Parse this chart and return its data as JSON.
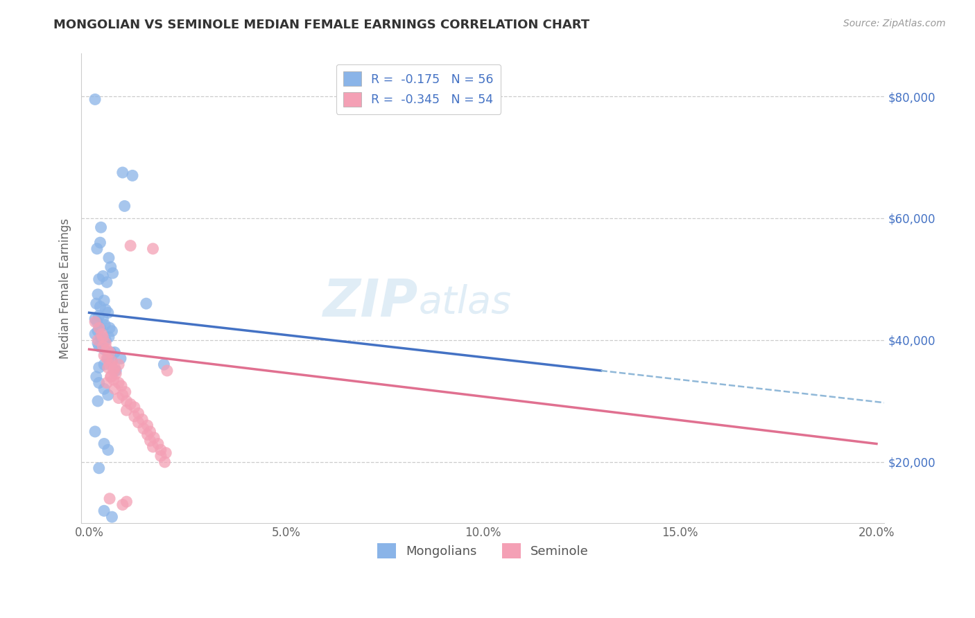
{
  "title": "MONGOLIAN VS SEMINOLE MEDIAN FEMALE EARNINGS CORRELATION CHART",
  "source": "Source: ZipAtlas.com",
  "ylabel_label": "Median Female Earnings",
  "x_min": 0.0,
  "x_max": 0.2,
  "y_min": 10000,
  "y_max": 87000,
  "y_ticks": [
    20000,
    40000,
    60000,
    80000
  ],
  "y_tick_labels": [
    "$20,000",
    "$40,000",
    "$60,000",
    "$80,000"
  ],
  "x_ticks": [
    0.0,
    0.05,
    0.1,
    0.15,
    0.2
  ],
  "x_tick_labels": [
    "0.0%",
    "5.0%",
    "10.0%",
    "15.0%",
    "20.0%"
  ],
  "legend_r1": "R =  -0.175   N = 56",
  "legend_r2": "R =  -0.345   N = 54",
  "blue_color": "#8ab4e8",
  "pink_color": "#f4a0b5",
  "blue_line_color": "#4472c4",
  "pink_line_color": "#e07090",
  "dashed_line_color": "#90b8d8",
  "watermark_zip": "ZIP",
  "watermark_atlas": "atlas",
  "mongolian_points": [
    [
      0.0015,
      79500
    ],
    [
      0.0085,
      67500
    ],
    [
      0.011,
      67000
    ],
    [
      0.009,
      62000
    ],
    [
      0.003,
      58500
    ],
    [
      0.0028,
      56000
    ],
    [
      0.002,
      55000
    ],
    [
      0.005,
      53500
    ],
    [
      0.0055,
      52000
    ],
    [
      0.006,
      51000
    ],
    [
      0.0025,
      50000
    ],
    [
      0.0035,
      50500
    ],
    [
      0.0045,
      49500
    ],
    [
      0.0022,
      47500
    ],
    [
      0.0038,
      46500
    ],
    [
      0.0018,
      46000
    ],
    [
      0.0028,
      45500
    ],
    [
      0.0042,
      45000
    ],
    [
      0.0048,
      44500
    ],
    [
      0.0025,
      44000
    ],
    [
      0.0035,
      43500
    ],
    [
      0.002,
      43000
    ],
    [
      0.0015,
      43500
    ],
    [
      0.004,
      42500
    ],
    [
      0.0052,
      42000
    ],
    [
      0.0028,
      42000
    ],
    [
      0.0058,
      41500
    ],
    [
      0.0022,
      41500
    ],
    [
      0.0015,
      41000
    ],
    [
      0.003,
      40500
    ],
    [
      0.0042,
      40000
    ],
    [
      0.005,
      40500
    ],
    [
      0.0022,
      39500
    ],
    [
      0.0025,
      39000
    ],
    [
      0.0038,
      38500
    ],
    [
      0.0055,
      38000
    ],
    [
      0.0065,
      38000
    ],
    [
      0.008,
      37000
    ],
    [
      0.0048,
      37000
    ],
    [
      0.0058,
      36500
    ],
    [
      0.0038,
      36000
    ],
    [
      0.0025,
      35500
    ],
    [
      0.0068,
      35000
    ],
    [
      0.0145,
      46000
    ],
    [
      0.019,
      36000
    ],
    [
      0.0018,
      34000
    ],
    [
      0.0025,
      33000
    ],
    [
      0.0038,
      32000
    ],
    [
      0.0048,
      31000
    ],
    [
      0.0022,
      30000
    ],
    [
      0.0015,
      25000
    ],
    [
      0.0038,
      23000
    ],
    [
      0.0048,
      22000
    ],
    [
      0.0025,
      19000
    ],
    [
      0.0038,
      12000
    ],
    [
      0.0058,
      11000
    ]
  ],
  "seminole_points": [
    [
      0.0015,
      43000
    ],
    [
      0.0025,
      42000
    ],
    [
      0.0032,
      41000
    ],
    [
      0.0035,
      40500
    ],
    [
      0.0022,
      40000
    ],
    [
      0.0042,
      39500
    ],
    [
      0.0035,
      39000
    ],
    [
      0.0045,
      38500
    ],
    [
      0.0052,
      38000
    ],
    [
      0.0038,
      37500
    ],
    [
      0.0045,
      37000
    ],
    [
      0.0058,
      36500
    ],
    [
      0.0052,
      36000
    ],
    [
      0.0048,
      35500
    ],
    [
      0.0062,
      35000
    ],
    [
      0.0068,
      34500
    ],
    [
      0.0055,
      34000
    ],
    [
      0.0062,
      33500
    ],
    [
      0.0075,
      33000
    ],
    [
      0.0082,
      32500
    ],
    [
      0.0065,
      32000
    ],
    [
      0.0092,
      31500
    ],
    [
      0.0085,
      31000
    ],
    [
      0.0075,
      30500
    ],
    [
      0.0095,
      30000
    ],
    [
      0.0105,
      29500
    ],
    [
      0.0115,
      29000
    ],
    [
      0.0095,
      28500
    ],
    [
      0.0125,
      28000
    ],
    [
      0.0115,
      27500
    ],
    [
      0.0135,
      27000
    ],
    [
      0.0125,
      26500
    ],
    [
      0.0148,
      26000
    ],
    [
      0.0138,
      25500
    ],
    [
      0.0155,
      25000
    ],
    [
      0.0148,
      24500
    ],
    [
      0.0165,
      24000
    ],
    [
      0.0155,
      23500
    ],
    [
      0.0175,
      23000
    ],
    [
      0.0162,
      22500
    ],
    [
      0.0105,
      55500
    ],
    [
      0.0162,
      55000
    ],
    [
      0.0182,
      22000
    ],
    [
      0.0195,
      21500
    ],
    [
      0.0182,
      21000
    ],
    [
      0.0198,
      35000
    ],
    [
      0.0192,
      20000
    ],
    [
      0.0052,
      14000
    ],
    [
      0.0095,
      13500
    ],
    [
      0.0085,
      13000
    ],
    [
      0.0075,
      36000
    ],
    [
      0.0065,
      35500
    ],
    [
      0.0055,
      34000
    ],
    [
      0.0045,
      33000
    ]
  ]
}
